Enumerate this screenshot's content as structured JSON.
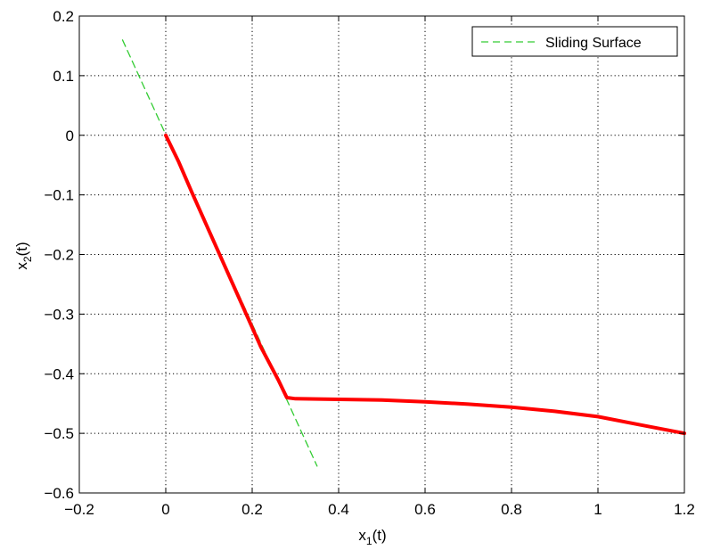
{
  "chart_data": {
    "type": "line",
    "title": "",
    "xlabel": "x",
    "xlabel_sub": "1",
    "xlabel_suffix": "(t)",
    "ylabel": "x",
    "ylabel_sub": "2",
    "ylabel_suffix": "(t)",
    "xlim": [
      -0.2,
      1.2
    ],
    "ylim": [
      -0.6,
      0.2
    ],
    "xticks": [
      -0.2,
      0,
      0.2,
      0.4,
      0.6,
      0.8,
      1,
      1.2
    ],
    "xtick_labels": [
      "−0.2",
      "0",
      "0.2",
      "0.4",
      "0.6",
      "0.8",
      "1",
      "1.2"
    ],
    "yticks": [
      0.2,
      0.1,
      0,
      -0.1,
      -0.2,
      -0.3,
      -0.4,
      -0.5,
      -0.6
    ],
    "ytick_labels": [
      "0.2",
      "0.1",
      "0",
      "−0.1",
      "−0.2",
      "−0.3",
      "−0.4",
      "−0.5",
      "−0.6"
    ],
    "grid": true,
    "legend_position": "top-right",
    "series": [
      {
        "name": "Sliding Surface",
        "style": "dashed",
        "color": "#33cc33",
        "x": [
          -0.1,
          0.35
        ],
        "y": [
          0.16,
          -0.555
        ]
      },
      {
        "style": "solid",
        "color": "#ff0000",
        "x": [
          0,
          0.03,
          0.06,
          0.1,
          0.14,
          0.18,
          0.22,
          0.26,
          0.28,
          0.3,
          0.4,
          0.5,
          0.6,
          0.7,
          0.8,
          0.9,
          1.0,
          1.1,
          1.2
        ],
        "y": [
          0,
          -0.045,
          -0.095,
          -0.16,
          -0.225,
          -0.29,
          -0.355,
          -0.41,
          -0.44,
          -0.442,
          -0.443,
          -0.444,
          -0.447,
          -0.451,
          -0.456,
          -0.463,
          -0.472,
          -0.486,
          -0.5
        ]
      }
    ]
  }
}
